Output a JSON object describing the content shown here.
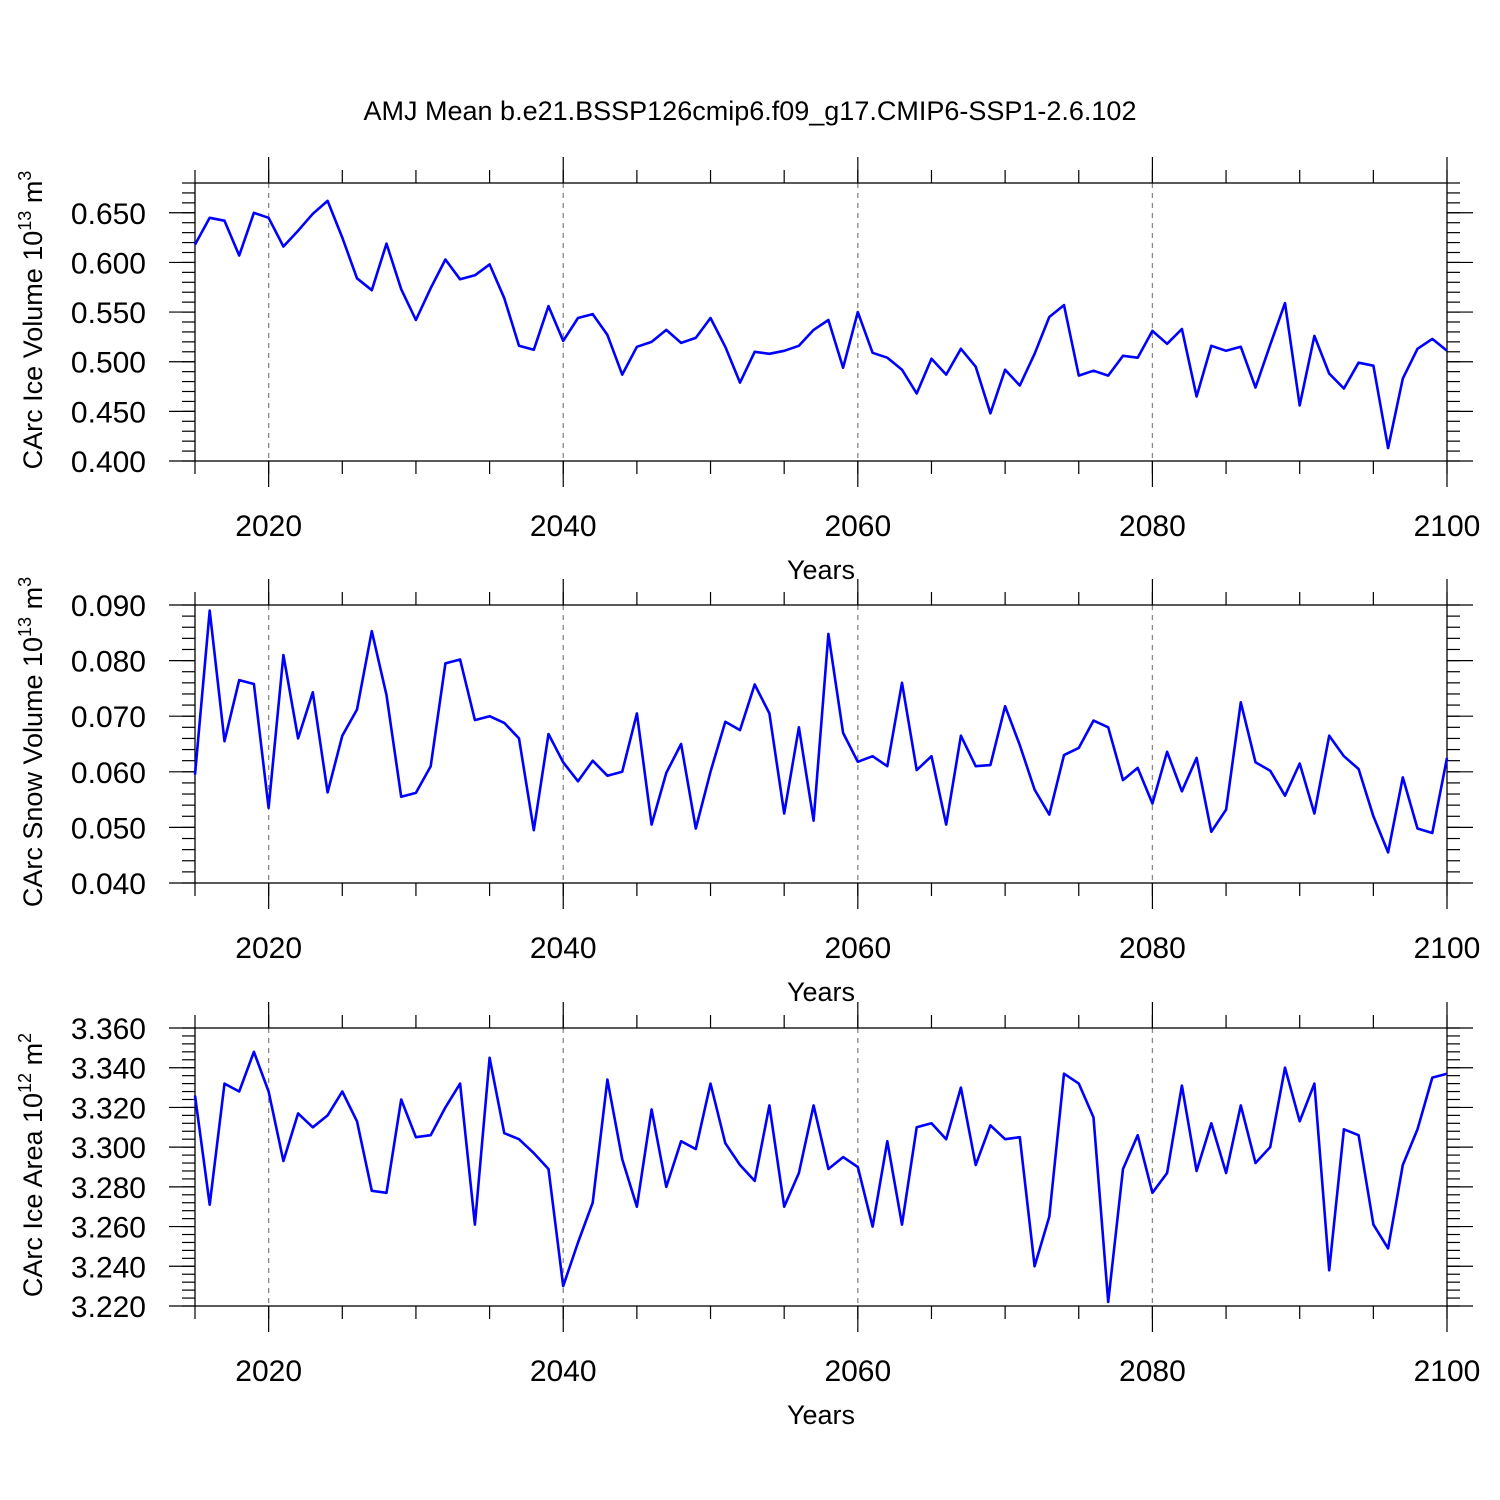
{
  "title": "AMJ Mean b.e21.BSSP126cmip6.f09_g17.CMIP6-SSP1-2.6.102",
  "line_color": "#0000ff",
  "chart_data": [
    {
      "type": "line",
      "ylabel": "CArc Ice Volume 10",
      "ylabel_exp": "13",
      "ylabel_unit": " m",
      "ylabel_unit_exp": "3",
      "xlabel": "Years",
      "xlim": [
        2015,
        2100
      ],
      "ylim": [
        0.4,
        0.68
      ],
      "x_ticks": [
        2020,
        2040,
        2060,
        2080,
        2100
      ],
      "x_tick_labels": [
        "2020",
        "2040",
        "2060",
        "2080",
        "2100"
      ],
      "y_ticks": [
        0.4,
        0.45,
        0.5,
        0.55,
        0.6,
        0.65
      ],
      "y_tick_labels": [
        "0.400",
        "0.450",
        "0.500",
        "0.550",
        "0.600",
        "0.650"
      ],
      "y_minor_step": 0.01,
      "grid_x": true,
      "x_start": 2015,
      "values": [
        0.618,
        0.645,
        0.642,
        0.607,
        0.65,
        0.645,
        0.616,
        0.632,
        0.649,
        0.662,
        0.625,
        0.584,
        0.572,
        0.619,
        0.573,
        0.542,
        0.574,
        0.603,
        0.583,
        0.587,
        0.598,
        0.564,
        0.516,
        0.512,
        0.556,
        0.521,
        0.544,
        0.548,
        0.527,
        0.487,
        0.515,
        0.52,
        0.532,
        0.519,
        0.524,
        0.544,
        0.515,
        0.479,
        0.51,
        0.508,
        0.511,
        0.516,
        0.532,
        0.542,
        0.494,
        0.55,
        0.509,
        0.504,
        0.492,
        0.468,
        0.503,
        0.487,
        0.513,
        0.495,
        0.448,
        0.492,
        0.476,
        0.508,
        0.545,
        0.557,
        0.486,
        0.491,
        0.486,
        0.506,
        0.504,
        0.531,
        0.518,
        0.533,
        0.465,
        0.516,
        0.511,
        0.515,
        0.474,
        0.517,
        0.559,
        0.456,
        0.526,
        0.488,
        0.473,
        0.499,
        0.496,
        0.413,
        0.483,
        0.513,
        0.523,
        0.511
      ]
    },
    {
      "type": "line",
      "ylabel": "CArc Snow Volume 10",
      "ylabel_exp": "13",
      "ylabel_unit": " m",
      "ylabel_unit_exp": "3",
      "xlabel": "Years",
      "xlim": [
        2015,
        2100
      ],
      "ylim": [
        0.04,
        0.09
      ],
      "x_ticks": [
        2020,
        2040,
        2060,
        2080,
        2100
      ],
      "x_tick_labels": [
        "2020",
        "2040",
        "2060",
        "2080",
        "2100"
      ],
      "y_ticks": [
        0.04,
        0.05,
        0.06,
        0.07,
        0.08,
        0.09
      ],
      "y_tick_labels": [
        "0.040",
        "0.050",
        "0.060",
        "0.070",
        "0.080",
        "0.090"
      ],
      "y_minor_step": 0.002,
      "grid_x": true,
      "x_start": 2015,
      "values": [
        0.0595,
        0.089,
        0.0655,
        0.0765,
        0.0758,
        0.0535,
        0.081,
        0.066,
        0.0743,
        0.0563,
        0.0665,
        0.0712,
        0.0853,
        0.0738,
        0.0555,
        0.0562,
        0.061,
        0.0795,
        0.0802,
        0.0693,
        0.07,
        0.0688,
        0.066,
        0.0495,
        0.0668,
        0.0617,
        0.0583,
        0.062,
        0.0593,
        0.06,
        0.0705,
        0.0505,
        0.0598,
        0.065,
        0.0498,
        0.06,
        0.069,
        0.0675,
        0.0757,
        0.0705,
        0.0525,
        0.068,
        0.0512,
        0.0848,
        0.067,
        0.0618,
        0.0628,
        0.061,
        0.076,
        0.0603,
        0.0628,
        0.0505,
        0.0665,
        0.061,
        0.0612,
        0.0718,
        0.0648,
        0.0568,
        0.0523,
        0.063,
        0.0643,
        0.0692,
        0.068,
        0.0585,
        0.0607,
        0.0543,
        0.0636,
        0.0565,
        0.0625,
        0.0492,
        0.0532,
        0.0725,
        0.0617,
        0.0602,
        0.0557,
        0.0615,
        0.0525,
        0.0665,
        0.0628,
        0.0605,
        0.052,
        0.0455,
        0.059,
        0.0498,
        0.049,
        0.0625
      ]
    },
    {
      "type": "line",
      "ylabel": "CArc Ice Area 10",
      "ylabel_exp": "12",
      "ylabel_unit": " m",
      "ylabel_unit_exp": "2",
      "xlabel": "Years",
      "xlim": [
        2015,
        2100
      ],
      "ylim": [
        3.22,
        3.36
      ],
      "x_ticks": [
        2020,
        2040,
        2060,
        2080,
        2100
      ],
      "x_tick_labels": [
        "2020",
        "2040",
        "2060",
        "2080",
        "2100"
      ],
      "y_ticks": [
        3.22,
        3.24,
        3.26,
        3.28,
        3.3,
        3.32,
        3.34,
        3.36
      ],
      "y_tick_labels": [
        "3.220",
        "3.240",
        "3.260",
        "3.280",
        "3.300",
        "3.320",
        "3.340",
        "3.360"
      ],
      "y_minor_step": 0.004,
      "grid_x": true,
      "x_start": 2015,
      "values": [
        3.326,
        3.271,
        3.332,
        3.328,
        3.348,
        3.328,
        3.293,
        3.317,
        3.31,
        3.316,
        3.328,
        3.313,
        3.278,
        3.277,
        3.324,
        3.305,
        3.306,
        3.32,
        3.332,
        3.261,
        3.345,
        3.307,
        3.304,
        3.297,
        3.289,
        3.23,
        3.252,
        3.272,
        3.334,
        3.294,
        3.27,
        3.319,
        3.28,
        3.303,
        3.299,
        3.332,
        3.302,
        3.291,
        3.283,
        3.321,
        3.27,
        3.287,
        3.321,
        3.289,
        3.295,
        3.29,
        3.26,
        3.303,
        3.261,
        3.31,
        3.312,
        3.304,
        3.33,
        3.291,
        3.311,
        3.304,
        3.305,
        3.24,
        3.265,
        3.337,
        3.332,
        3.315,
        3.222,
        3.289,
        3.306,
        3.277,
        3.287,
        3.331,
        3.288,
        3.312,
        3.287,
        3.321,
        3.292,
        3.3,
        3.34,
        3.313,
        3.332,
        3.238,
        3.309,
        3.306,
        3.261,
        3.249,
        3.291,
        3.309,
        3.335,
        3.337
      ]
    }
  ]
}
